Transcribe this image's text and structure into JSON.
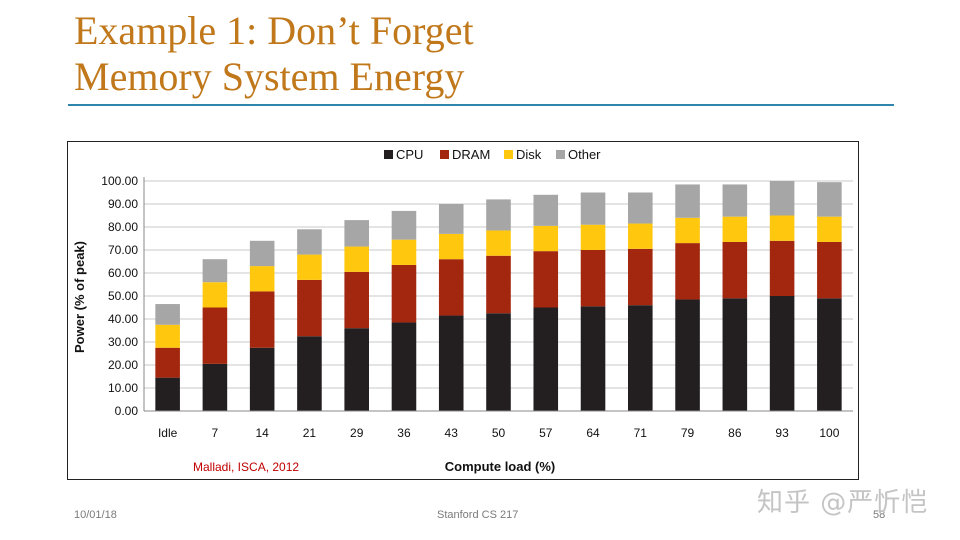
{
  "slide": {
    "title_line1": "Example 1: Don’t Forget",
    "title_line2": "Memory System Energy",
    "footer_date": "10/01/18",
    "footer_course": "Stanford CS 217",
    "page_number": "58",
    "watermark": "知乎 @严忻恺"
  },
  "chart_data": {
    "type": "bar",
    "stacked": true,
    "categories": [
      "Idle",
      "7",
      "14",
      "21",
      "29",
      "36",
      "43",
      "50",
      "57",
      "64",
      "71",
      "79",
      "86",
      "93",
      "100"
    ],
    "series": [
      {
        "name": "CPU",
        "color": "#231f20",
        "values": [
          14.5,
          20.5,
          27.5,
          32.5,
          36,
          38.5,
          41.5,
          42.5,
          45,
          45.5,
          46,
          48.5,
          49,
          50,
          49
        ]
      },
      {
        "name": "DRAM",
        "color": "#a3260e",
        "values": [
          13,
          24.5,
          24.5,
          24.5,
          24.5,
          25,
          24.5,
          25,
          24.5,
          24.5,
          24.5,
          24.5,
          24.5,
          24,
          24.5
        ]
      },
      {
        "name": "Disk",
        "color": "#ffc80f",
        "values": [
          10,
          11,
          11,
          11,
          11,
          11,
          11,
          11,
          11,
          11,
          11,
          11,
          11,
          11,
          11
        ]
      },
      {
        "name": "Other",
        "color": "#a6a6a6",
        "values": [
          9,
          10,
          11,
          11,
          11.5,
          12.5,
          13,
          13.5,
          13.5,
          14,
          13.5,
          14.5,
          14,
          15,
          15
        ]
      }
    ],
    "ylim": [
      0,
      100
    ],
    "yticks": [
      "0.00",
      "10.00",
      "20.00",
      "30.00",
      "40.00",
      "50.00",
      "60.00",
      "70.00",
      "80.00",
      "90.00",
      "100.00"
    ],
    "xlabel": "Compute load (%)",
    "ylabel": "Power (% of peak)",
    "grid": true,
    "legend_position": "top",
    "annotation": "Malladi, ISCA, 2012",
    "annotation_color": "#c00000"
  }
}
